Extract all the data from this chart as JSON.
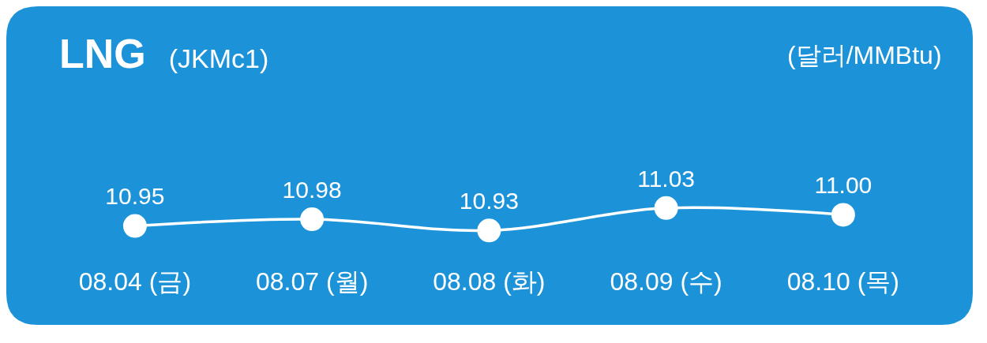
{
  "chart_data": {
    "type": "line",
    "title": "LNG",
    "subtitle": "(JKMc1)",
    "annotations": [
      "(달러/MMBtu)"
    ],
    "categories": [
      "08.04 (금)",
      "08.07 (월)",
      "08.08 (화)",
      "08.09 (수)",
      "08.10 (목)"
    ],
    "series": [
      {
        "color": "#ffffff",
        "values": [
          10.95,
          10.98,
          10.93,
          11.03,
          11.0
        ],
        "value_labels": [
          "10.95",
          "10.98",
          "10.93",
          "11.03",
          "11.00"
        ]
      }
    ],
    "marker": "circle",
    "line_style": "solid"
  }
}
